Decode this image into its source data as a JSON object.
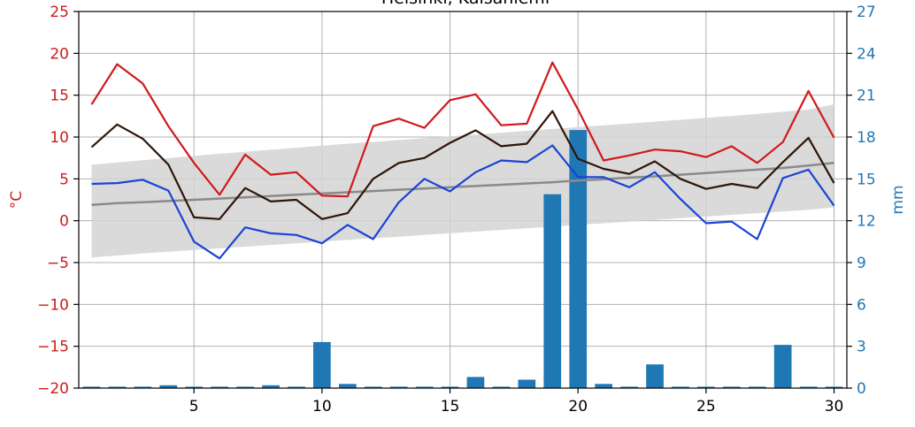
{
  "chart_data": {
    "type": "line",
    "title": "Helsinki, Kaisaniemi",
    "x": [
      1,
      2,
      3,
      4,
      5,
      6,
      7,
      8,
      9,
      10,
      11,
      12,
      13,
      14,
      15,
      16,
      17,
      18,
      19,
      20,
      21,
      22,
      23,
      24,
      25,
      26,
      27,
      28,
      29,
      30
    ],
    "xlim": [
      0.5,
      30.5
    ],
    "xticks": [
      5,
      10,
      15,
      20,
      25,
      30
    ],
    "ylabel_left": "°C",
    "ylim_left": [
      -20,
      25
    ],
    "yticks_left": [
      -20,
      -15,
      -10,
      -5,
      0,
      5,
      10,
      15,
      20,
      25
    ],
    "ylabel_right": "mm",
    "ylim_right": [
      0,
      27
    ],
    "yticks_right": [
      0,
      3,
      6,
      9,
      12,
      15,
      18,
      21,
      24,
      27
    ],
    "grid": true,
    "series": [
      {
        "axis": "left",
        "kind": "line",
        "color": "#d0191b",
        "values": [
          13.9,
          18.7,
          16.4,
          11.3,
          6.9,
          3.1,
          7.9,
          5.5,
          5.8,
          3.0,
          2.9,
          11.3,
          12.2,
          11.1,
          14.4,
          15.1,
          11.4,
          11.6,
          18.9,
          13.3,
          7.2,
          7.8,
          8.5,
          8.3,
          7.6,
          8.9,
          6.9,
          9.4,
          15.5,
          9.9
        ]
      },
      {
        "axis": "left",
        "kind": "line",
        "color": "#2e1508",
        "values": [
          8.8,
          11.5,
          9.8,
          6.7,
          0.4,
          0.2,
          3.9,
          2.3,
          2.5,
          0.2,
          0.9,
          5.0,
          6.9,
          7.5,
          9.3,
          10.8,
          8.9,
          9.2,
          13.1,
          7.4,
          6.2,
          5.6,
          7.1,
          5.0,
          3.8,
          4.4,
          3.9,
          7.0,
          9.9,
          4.5
        ]
      },
      {
        "axis": "left",
        "kind": "line",
        "color": "#1a44d4",
        "values": [
          4.4,
          4.5,
          4.9,
          3.6,
          -2.5,
          -4.5,
          -0.8,
          -1.5,
          -1.7,
          -2.7,
          -0.5,
          -2.2,
          2.2,
          5.0,
          3.5,
          5.8,
          7.2,
          7.0,
          9.0,
          5.2,
          5.2,
          4.0,
          5.8,
          2.6,
          -0.3,
          -0.1,
          -2.2,
          5.1,
          6.1,
          1.8
        ]
      },
      {
        "axis": "left",
        "kind": "line",
        "color": "#8a8a8a",
        "values": [
          1.9,
          2.1,
          2.2,
          2.35,
          2.5,
          2.65,
          2.8,
          2.95,
          3.1,
          3.25,
          3.4,
          3.55,
          3.7,
          3.85,
          4.0,
          4.15,
          4.3,
          4.45,
          4.6,
          4.8,
          4.95,
          5.15,
          5.3,
          5.5,
          5.7,
          5.9,
          6.1,
          6.3,
          6.6,
          6.9
        ]
      },
      {
        "axis": "left",
        "kind": "band",
        "color": "#d3d3d3",
        "upper": [
          6.7,
          6.96,
          7.22,
          7.48,
          7.74,
          8.0,
          8.24,
          8.48,
          8.72,
          8.96,
          9.2,
          9.42,
          9.64,
          9.86,
          10.08,
          10.3,
          10.52,
          10.74,
          10.96,
          11.18,
          11.4,
          11.62,
          11.84,
          12.06,
          12.28,
          12.5,
          12.76,
          13.02,
          13.28,
          13.9
        ],
        "lower": [
          -4.4,
          -4.15,
          -3.9,
          -3.7,
          -3.5,
          -3.3,
          -3.1,
          -2.9,
          -2.7,
          -2.5,
          -2.3,
          -2.1,
          -1.9,
          -1.7,
          -1.5,
          -1.3,
          -1.1,
          -0.9,
          -0.7,
          -0.5,
          -0.3,
          -0.1,
          0.1,
          0.3,
          0.5,
          0.7,
          0.9,
          1.1,
          1.3,
          1.6
        ]
      },
      {
        "axis": "right",
        "kind": "bar",
        "color": "#1f77b4",
        "values": [
          0.1,
          0.1,
          0.1,
          0.2,
          0.1,
          0.1,
          0.1,
          0.2,
          0.1,
          3.3,
          0.3,
          0.1,
          0.1,
          0.1,
          0.1,
          0.8,
          0.1,
          0.6,
          13.9,
          18.5,
          0.3,
          0.1,
          1.7,
          0.1,
          0.1,
          0.1,
          0.1,
          3.1,
          0.1,
          0.1
        ]
      }
    ],
    "colors": {
      "left_axis": "#d0191b",
      "right_axis": "#1f77b4",
      "grid": "#b0b0b0"
    }
  }
}
